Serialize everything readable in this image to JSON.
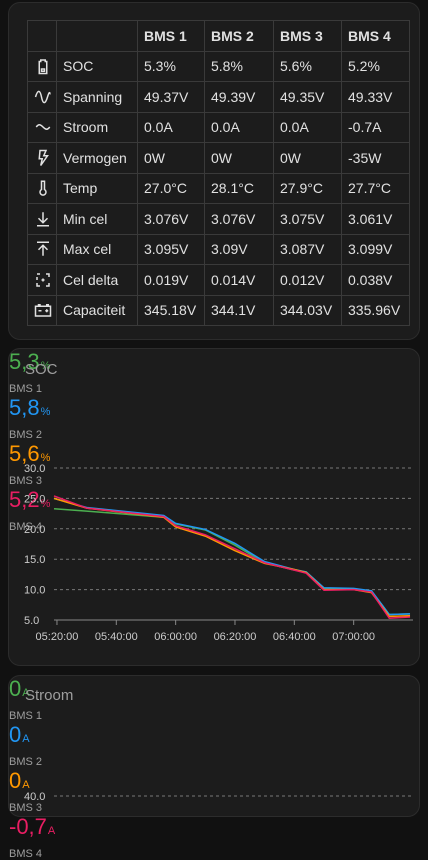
{
  "table": {
    "header": [
      "BMS 1",
      "BMS 2",
      "BMS 3",
      "BMS 4"
    ],
    "rows": [
      [
        "SOC",
        "5.3%",
        "5.8%",
        "5.6%",
        "5.2%"
      ],
      [
        "Spanning",
        "49.37V",
        "49.39V",
        "49.35V",
        "49.33V"
      ],
      [
        "Stroom",
        "0.0A",
        "0.0A",
        "0.0A",
        "-0.7A"
      ],
      [
        "Vermogen",
        "0W",
        "0W",
        "0W",
        "-35W"
      ],
      [
        "Temp",
        "27.0°C",
        "28.1°C",
        "27.9°C",
        "27.7°C"
      ],
      [
        "Min cel",
        "3.076V",
        "3.076V",
        "3.075V",
        "3.061V"
      ],
      [
        "Max cel",
        "3.095V",
        "3.09V",
        "3.087V",
        "3.099V"
      ],
      [
        "Cel delta",
        "0.019V",
        "0.014V",
        "0.012V",
        "0.038V"
      ],
      [
        "Capaciteit",
        "345.18V",
        "344.1V",
        "344.03V",
        "335.96V"
      ]
    ]
  },
  "soc_card": {
    "title": "SOC",
    "stats": [
      {
        "value": "5,3",
        "unit": "%",
        "label": "BMS 1",
        "color": "#4caf50"
      },
      {
        "value": "5,8",
        "unit": "%",
        "label": "BMS 2",
        "color": "#2196f3"
      },
      {
        "value": "5,6",
        "unit": "%",
        "label": "BMS 3",
        "color": "#ff9800"
      },
      {
        "value": "5,2",
        "unit": "%",
        "label": "BMS 4",
        "color": "#e91e63"
      }
    ],
    "chart": {
      "type": "line",
      "x": [
        "05:19:00",
        "05:30:00",
        "05:56:00",
        "06:00:00",
        "06:10:00",
        "06:20:00",
        "06:30:00",
        "06:40:00",
        "06:44:00",
        "06:50:00",
        "07:00:00",
        "07:06:00",
        "07:12:00",
        "07:19:00"
      ],
      "xlim": [
        "05:19:00",
        "07:20:00"
      ],
      "xticks": [
        "05:20:00",
        "05:40:00",
        "06:00:00",
        "06:20:00",
        "06:40:00",
        "07:00:00"
      ],
      "ylim": [
        5,
        30
      ],
      "yticks": [
        {
          "value": 5,
          "label": "5.0"
        },
        {
          "value": 10,
          "label": "10.0"
        },
        {
          "value": 15,
          "label": "15.0"
        },
        {
          "value": 20,
          "label": "20.0"
        },
        {
          "value": 25,
          "label": "25.0"
        },
        {
          "value": 30,
          "label": "30.0"
        }
      ],
      "series": [
        {
          "color": "#4caf50",
          "values": [
            23.3,
            22.9,
            21.9,
            20.8,
            19.8,
            17.3,
            14.4,
            13.2,
            12.9,
            10.2,
            10.1,
            9.8,
            5.9,
            6.0
          ]
        },
        {
          "color": "#2196f3",
          "values": [
            25.0,
            23.5,
            22.2,
            20.9,
            19.9,
            17.6,
            14.6,
            13.3,
            12.9,
            10.3,
            10.2,
            9.8,
            5.9,
            6.0
          ]
        },
        {
          "color": "#ff9800",
          "values": [
            25.0,
            23.4,
            21.9,
            20.3,
            18.8,
            16.4,
            14.3,
            13.3,
            12.8,
            10.0,
            10.0,
            9.5,
            5.6,
            5.7
          ]
        },
        {
          "color": "#e91e63",
          "values": [
            25.4,
            23.4,
            22.0,
            20.5,
            19.0,
            16.7,
            14.4,
            13.2,
            12.7,
            9.9,
            10.0,
            9.6,
            5.3,
            5.5
          ]
        }
      ]
    }
  },
  "stroom_card": {
    "title": "Stroom",
    "stats": [
      {
        "value": "0",
        "unit": "A",
        "label": "BMS 1",
        "color": "#4caf50"
      },
      {
        "value": "0",
        "unit": "A",
        "label": "BMS 2",
        "color": "#2196f3"
      },
      {
        "value": "0",
        "unit": "A",
        "label": "BMS 3",
        "color": "#ff9800"
      },
      {
        "value": "-0,7",
        "unit": "A",
        "label": "BMS 4",
        "color": "#e91e63"
      }
    ],
    "chart": {
      "type": "line",
      "yticks": [
        {
          "value": 40,
          "label": "40.0"
        }
      ]
    }
  }
}
